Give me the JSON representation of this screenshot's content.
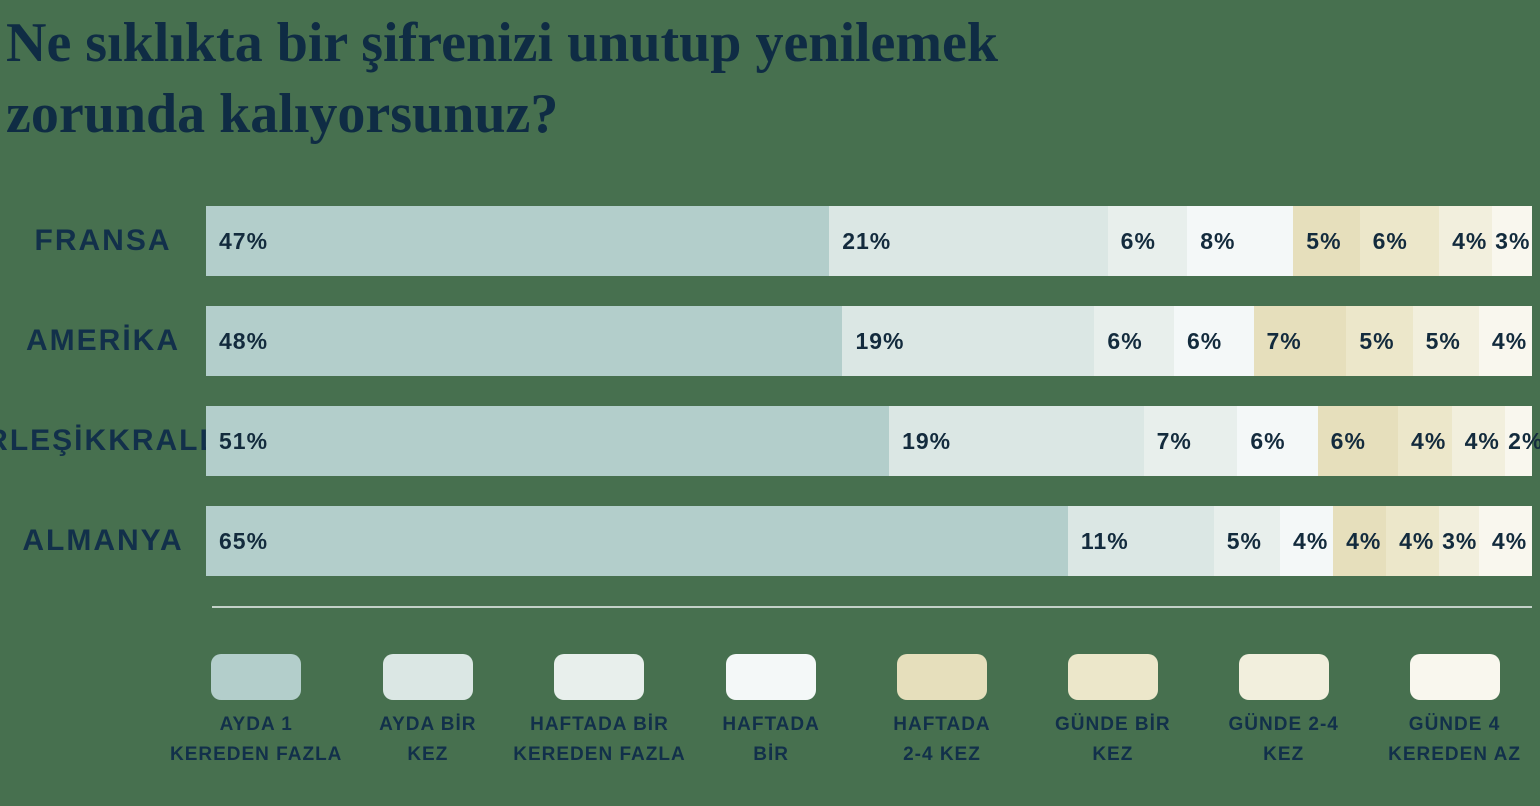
{
  "title": {
    "lines": [
      "Ne sıklıkta bir şifrenizi unutup yenilemek",
      "zorunda kalıyorsunuz?"
    ],
    "full": "Ne sıklıkta bir şifrenizi unutup yenilemek zorunda kalıyorsunuz?"
  },
  "colors": {
    "background": "#47704f",
    "title_text": "#0f2c44",
    "label_text": "#12304a",
    "value_text": "#132b3d",
    "divider": "#c3d1c8",
    "palette": [
      "#b3cecb",
      "#dbe7e4",
      "#e8efec",
      "#f4f8f8",
      "#e6dfbc",
      "#ece7ca",
      "#f2efdd",
      "#f9f7ee"
    ]
  },
  "chart_data": {
    "type": "bar",
    "variant": "horizontal-stacked",
    "unit": "%",
    "title": "Ne sıklıkta bir şifrenizi unutup yenilemek zorunda kalıyorsunuz?",
    "categories": [
      "FRANSA",
      "AMERİKA",
      "BİRLEŞİK KRALLIK",
      "ALMANYA"
    ],
    "category_lines": [
      [
        "FRANSA"
      ],
      [
        "AMERİKA"
      ],
      [
        "BİRLEŞİK",
        "KRALLIK"
      ],
      [
        "ALMANYA"
      ]
    ],
    "series": [
      {
        "name": "AYDA 1 KEREDEN FAZLA",
        "color_index": 0,
        "values": [
          47,
          48,
          51,
          65
        ]
      },
      {
        "name": "AYDA BİR KEZ",
        "color_index": 1,
        "values": [
          21,
          19,
          19,
          11
        ]
      },
      {
        "name": "HAFTADA BİR KEREDEN FAZLA",
        "color_index": 2,
        "values": [
          6,
          6,
          7,
          5
        ]
      },
      {
        "name": "HAFTADA BİR",
        "color_index": 3,
        "values": [
          8,
          6,
          6,
          4
        ]
      },
      {
        "name": "HAFTADA 2-4 KEZ",
        "color_index": 4,
        "values": [
          5,
          7,
          6,
          4
        ]
      },
      {
        "name": "GÜNDE BİR KEZ",
        "color_index": 5,
        "values": [
          6,
          5,
          4,
          4
        ]
      },
      {
        "name": "GÜNDE 2-4 KEZ",
        "color_index": 6,
        "values": [
          4,
          5,
          4,
          3
        ]
      },
      {
        "name": "GÜNDE 4 KEREDEN AZ",
        "color_index": 7,
        "values": [
          3,
          4,
          2,
          4
        ]
      }
    ],
    "value_label_format": "{v}%",
    "legend_position": "bottom",
    "axis": "none",
    "grid": false
  },
  "legend": {
    "items": [
      {
        "lines": [
          "AYDA 1",
          "KEREDEN FAZLA"
        ]
      },
      {
        "lines": [
          "AYDA BİR",
          "KEZ"
        ]
      },
      {
        "lines": [
          "HAFTADA BİR",
          "KEREDEN FAZLA"
        ]
      },
      {
        "lines": [
          "HAFTADA",
          "BİR"
        ]
      },
      {
        "lines": [
          "HAFTADA",
          "2-4 KEZ"
        ]
      },
      {
        "lines": [
          "GÜNDE BİR",
          "KEZ"
        ]
      },
      {
        "lines": [
          "GÜNDE 2-4",
          "KEZ"
        ]
      },
      {
        "lines": [
          "GÜNDE 4",
          "KEREDEN AZ"
        ]
      }
    ]
  }
}
